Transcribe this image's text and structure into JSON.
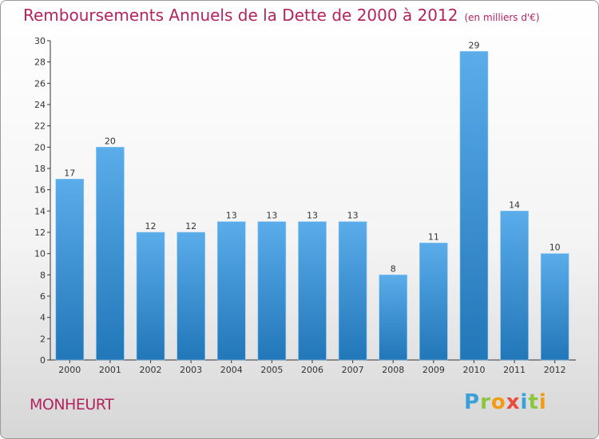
{
  "header": {
    "title": "Remboursements Annuels de la Dette de 2000 à 2012",
    "subtitle": "(en milliers d'€)"
  },
  "footer": {
    "commune": "MONHEURT",
    "logo": "Proxiti"
  },
  "colors": {
    "accent": "#b3245f",
    "bar_top": "#5aacea",
    "bar_bottom": "#2277b8"
  },
  "chart_data": {
    "type": "bar",
    "categories": [
      "2000",
      "2001",
      "2002",
      "2003",
      "2004",
      "2005",
      "2006",
      "2007",
      "2008",
      "2009",
      "2010",
      "2011",
      "2012"
    ],
    "values": [
      17,
      20,
      12,
      12,
      13,
      13,
      13,
      13,
      8,
      11,
      29,
      14,
      10
    ],
    "title": "Remboursements Annuels de la Dette de 2000 à 2012",
    "subtitle": "(en milliers d'€)",
    "xlabel": "",
    "ylabel": "",
    "ylim": [
      0,
      30
    ],
    "yticks": [
      0,
      2,
      4,
      6,
      8,
      10,
      12,
      14,
      16,
      18,
      20,
      22,
      24,
      26,
      28,
      30
    ],
    "grid": false,
    "legend": "none"
  }
}
